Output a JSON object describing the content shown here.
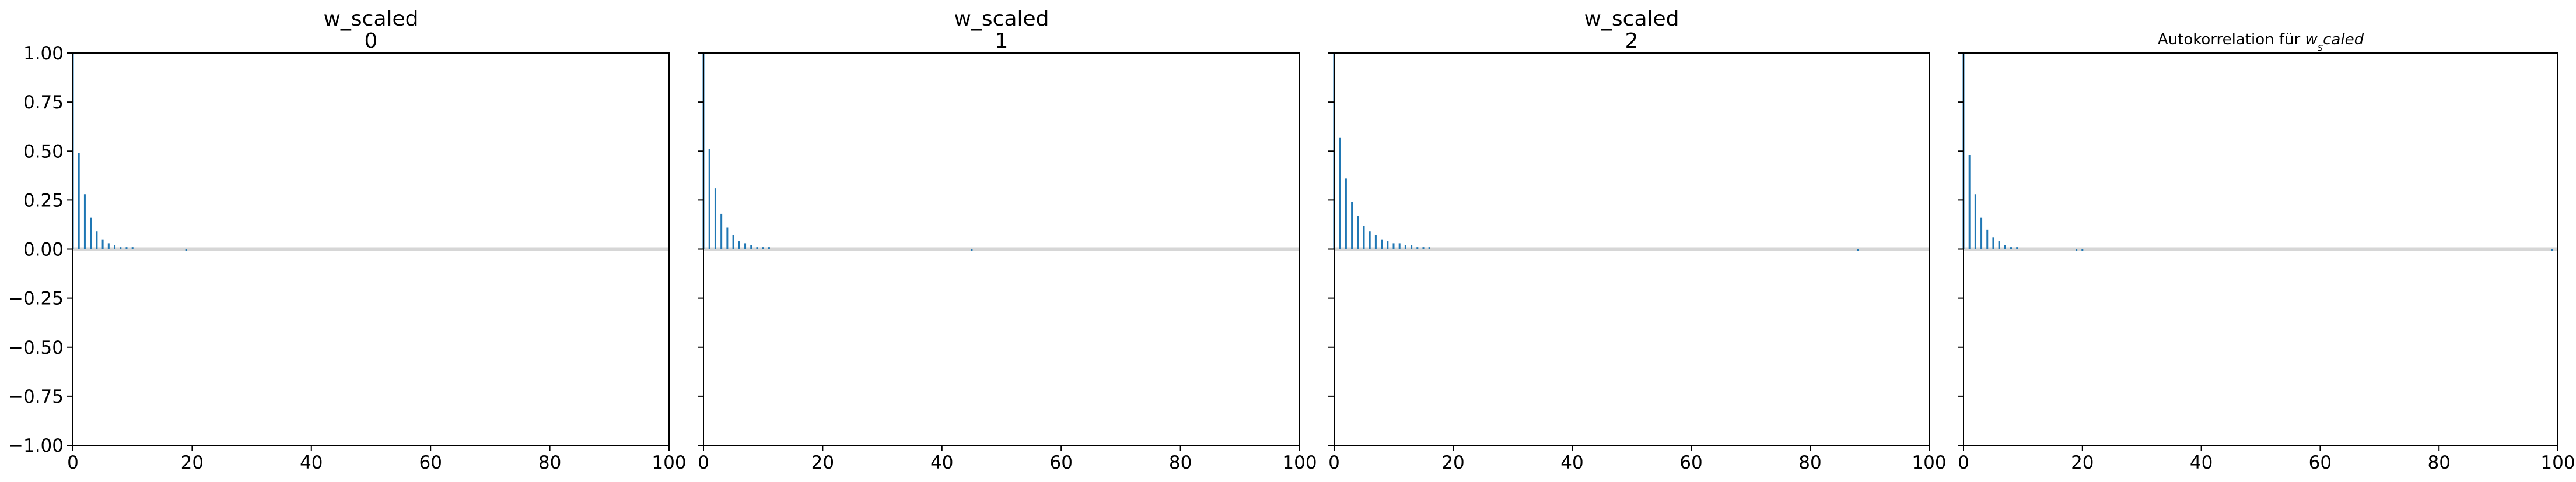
{
  "chart_data": [
    {
      "type": "stem",
      "title": "w_scaled",
      "subtitle": "0",
      "color": "#1f77b4",
      "show_ytick_labels": true,
      "x": [
        0,
        1,
        2,
        3,
        4,
        5,
        6,
        7,
        8,
        9,
        10,
        11,
        12,
        13,
        14,
        15,
        16,
        17,
        18,
        19,
        20,
        21,
        22,
        23,
        24,
        25,
        26,
        27,
        28,
        29,
        30,
        31,
        32,
        33,
        34,
        35,
        36,
        37,
        38,
        39,
        40,
        41,
        42,
        43,
        44,
        45,
        46,
        47,
        48,
        49,
        50,
        51,
        52,
        53,
        54,
        55,
        56,
        57,
        58,
        59,
        60,
        61,
        62,
        63,
        64,
        65,
        66,
        67,
        68,
        69,
        70,
        71,
        72,
        73,
        74,
        75,
        76,
        77,
        78,
        79,
        80,
        81,
        82,
        83,
        84,
        85,
        86,
        87,
        88,
        89,
        90,
        91,
        92,
        93,
        94,
        95,
        96,
        97,
        98,
        99,
        100
      ],
      "values": [
        1,
        0.49,
        0.28,
        0.16,
        0.09,
        0.05,
        0.03,
        0.02,
        0.01,
        0.01,
        0.01,
        0,
        0,
        0,
        0,
        0,
        0,
        0,
        0,
        -0.01,
        0,
        0,
        0,
        0,
        0,
        0,
        0,
        0,
        0,
        0,
        0,
        0,
        0,
        0,
        0,
        0,
        0,
        0,
        0,
        0,
        0,
        0,
        0,
        0,
        0,
        0,
        0,
        0,
        0,
        0,
        0,
        0,
        0,
        0,
        0,
        0,
        0,
        0,
        0,
        0,
        0,
        0,
        0,
        0,
        0,
        0,
        0,
        0,
        0,
        0,
        0,
        0,
        0,
        0,
        0,
        0,
        0,
        0,
        0,
        0,
        0,
        0,
        0,
        0,
        0,
        0,
        0,
        0,
        0,
        0,
        0,
        0,
        0,
        0,
        0,
        0,
        0,
        0,
        0,
        0,
        0
      ],
      "xlim": [
        0,
        100
      ],
      "xticks": [
        0,
        20,
        40,
        60,
        80,
        100
      ],
      "ylim": [
        -1,
        1
      ],
      "yticks": [
        {
          "value": -1,
          "label": "−1.00"
        },
        {
          "value": -0.75,
          "label": "−0.75"
        },
        {
          "value": -0.5,
          "label": "−0.50"
        },
        {
          "value": -0.25,
          "label": "−0.25"
        },
        {
          "value": 0,
          "label": "0.00"
        },
        {
          "value": 0.25,
          "label": "0.25"
        },
        {
          "value": 0.5,
          "label": "0.50"
        },
        {
          "value": 0.75,
          "label": "0.75"
        },
        {
          "value": 1,
          "label": "1.00"
        }
      ]
    },
    {
      "type": "stem",
      "title": "w_scaled",
      "subtitle": "1",
      "color": "#1f77b4",
      "show_ytick_labels": false,
      "x": [
        0,
        1,
        2,
        3,
        4,
        5,
        6,
        7,
        8,
        9,
        10,
        11,
        12,
        13,
        14,
        15,
        16,
        17,
        18,
        19,
        20,
        21,
        22,
        23,
        24,
        25,
        26,
        27,
        28,
        29,
        30,
        31,
        32,
        33,
        34,
        35,
        36,
        37,
        38,
        39,
        40,
        41,
        42,
        43,
        44,
        45,
        46,
        47,
        48,
        49,
        50,
        51,
        52,
        53,
        54,
        55,
        56,
        57,
        58,
        59,
        60,
        61,
        62,
        63,
        64,
        65,
        66,
        67,
        68,
        69,
        70,
        71,
        72,
        73,
        74,
        75,
        76,
        77,
        78,
        79,
        80,
        81,
        82,
        83,
        84,
        85,
        86,
        87,
        88,
        89,
        90,
        91,
        92,
        93,
        94,
        95,
        96,
        97,
        98,
        99,
        100
      ],
      "values": [
        1,
        0.51,
        0.31,
        0.18,
        0.11,
        0.07,
        0.04,
        0.03,
        0.02,
        0.01,
        0.01,
        0.01,
        0,
        0,
        0,
        0,
        0,
        0,
        0,
        0,
        0,
        0,
        0,
        0,
        0,
        0,
        0,
        0,
        0,
        0,
        0,
        0,
        0,
        0,
        0,
        0,
        0,
        0,
        0,
        0,
        0,
        0,
        0,
        0,
        0,
        -0.01,
        0,
        0,
        0,
        0,
        0,
        0,
        0,
        0,
        0,
        0,
        0,
        0,
        0,
        0,
        0,
        0,
        0,
        0,
        0,
        0,
        0,
        0,
        0,
        0,
        0,
        0,
        0,
        0,
        0,
        0,
        0,
        0,
        0,
        0,
        0,
        0,
        0,
        0,
        0,
        0,
        0,
        0,
        0,
        0,
        0,
        0,
        0,
        0,
        0,
        0,
        0,
        0,
        0,
        0,
        0
      ],
      "xlim": [
        0,
        100
      ],
      "xticks": [
        0,
        20,
        40,
        60,
        80,
        100
      ],
      "ylim": [
        -1,
        1
      ],
      "yticks": [
        -1,
        -0.75,
        -0.5,
        -0.25,
        0,
        0.25,
        0.5,
        0.75,
        1
      ]
    },
    {
      "type": "stem",
      "title": "w_scaled",
      "subtitle": "2",
      "color": "#1f77b4",
      "show_ytick_labels": false,
      "x": [
        0,
        1,
        2,
        3,
        4,
        5,
        6,
        7,
        8,
        9,
        10,
        11,
        12,
        13,
        14,
        15,
        16,
        17,
        18,
        19,
        20,
        21,
        22,
        23,
        24,
        25,
        26,
        27,
        28,
        29,
        30,
        31,
        32,
        33,
        34,
        35,
        36,
        37,
        38,
        39,
        40,
        41,
        42,
        43,
        44,
        45,
        46,
        47,
        48,
        49,
        50,
        51,
        52,
        53,
        54,
        55,
        56,
        57,
        58,
        59,
        60,
        61,
        62,
        63,
        64,
        65,
        66,
        67,
        68,
        69,
        70,
        71,
        72,
        73,
        74,
        75,
        76,
        77,
        78,
        79,
        80,
        81,
        82,
        83,
        84,
        85,
        86,
        87,
        88,
        89,
        90,
        91,
        92,
        93,
        94,
        95,
        96,
        97,
        98,
        99,
        100
      ],
      "values": [
        1,
        0.57,
        0.36,
        0.24,
        0.17,
        0.12,
        0.09,
        0.07,
        0.05,
        0.04,
        0.03,
        0.03,
        0.02,
        0.02,
        0.01,
        0.01,
        0.01,
        0,
        0,
        0,
        0,
        0,
        0,
        0,
        0,
        0,
        0,
        0,
        0,
        0,
        0,
        0,
        0,
        0,
        0,
        0,
        0,
        0,
        0,
        0,
        0,
        0,
        0,
        0,
        0,
        0,
        0,
        0,
        0,
        0,
        0,
        0,
        0,
        0,
        0,
        0,
        0,
        0,
        0,
        0,
        0,
        0,
        0,
        0,
        0,
        0,
        0,
        0,
        0,
        0,
        0,
        0,
        0,
        0,
        0,
        0,
        0,
        0,
        0,
        0,
        0,
        0,
        0,
        0,
        0,
        0,
        0,
        0,
        -0.01,
        0,
        0,
        0,
        0,
        0,
        0,
        0,
        0,
        0,
        0,
        0,
        0
      ],
      "xlim": [
        0,
        100
      ],
      "xticks": [
        0,
        20,
        40,
        60,
        80,
        100
      ],
      "ylim": [
        -1,
        1
      ],
      "yticks": [
        -1,
        -0.75,
        -0.5,
        -0.25,
        0,
        0.25,
        0.5,
        0.75,
        1
      ]
    },
    {
      "type": "stem",
      "title_parts": [
        "Autokorrelation für ",
        "w",
        "s",
        "caled"
      ],
      "color": "#1f77b4",
      "show_ytick_labels": false,
      "x": [
        0,
        1,
        2,
        3,
        4,
        5,
        6,
        7,
        8,
        9,
        10,
        11,
        12,
        13,
        14,
        15,
        16,
        17,
        18,
        19,
        20,
        21,
        22,
        23,
        24,
        25,
        26,
        27,
        28,
        29,
        30,
        31,
        32,
        33,
        34,
        35,
        36,
        37,
        38,
        39,
        40,
        41,
        42,
        43,
        44,
        45,
        46,
        47,
        48,
        49,
        50,
        51,
        52,
        53,
        54,
        55,
        56,
        57,
        58,
        59,
        60,
        61,
        62,
        63,
        64,
        65,
        66,
        67,
        68,
        69,
        70,
        71,
        72,
        73,
        74,
        75,
        76,
        77,
        78,
        79,
        80,
        81,
        82,
        83,
        84,
        85,
        86,
        87,
        88,
        89,
        90,
        91,
        92,
        93,
        94,
        95,
        96,
        97,
        98,
        99,
        100
      ],
      "values": [
        1,
        0.48,
        0.28,
        0.16,
        0.1,
        0.06,
        0.04,
        0.02,
        0.01,
        0.01,
        0,
        0,
        0,
        0,
        0,
        0,
        0,
        0,
        0,
        -0.01,
        -0.01,
        0,
        0,
        0,
        0,
        0,
        0,
        0,
        0,
        0,
        0,
        0,
        0,
        0,
        0,
        0,
        0,
        0,
        0,
        0,
        0,
        0,
        0,
        0,
        0,
        0,
        0,
        0,
        0,
        0,
        0,
        0,
        0,
        0,
        0,
        0,
        0,
        0,
        0,
        0,
        0,
        0,
        0,
        0,
        0,
        0,
        0,
        0,
        0,
        0,
        0,
        0,
        0,
        0,
        0,
        0,
        0,
        0,
        0,
        0,
        0,
        0,
        0,
        0,
        0,
        0,
        0,
        0,
        0,
        0,
        0,
        0,
        0,
        0,
        0,
        0,
        0,
        0,
        0,
        -0.01,
        0
      ],
      "xlim": [
        0,
        100
      ],
      "xticks": [
        0,
        20,
        40,
        60,
        80,
        100
      ],
      "ylim": [
        -1,
        1
      ],
      "yticks": [
        -1,
        -0.75,
        -0.5,
        -0.25,
        0,
        0.25,
        0.5,
        0.75,
        1
      ]
    }
  ]
}
